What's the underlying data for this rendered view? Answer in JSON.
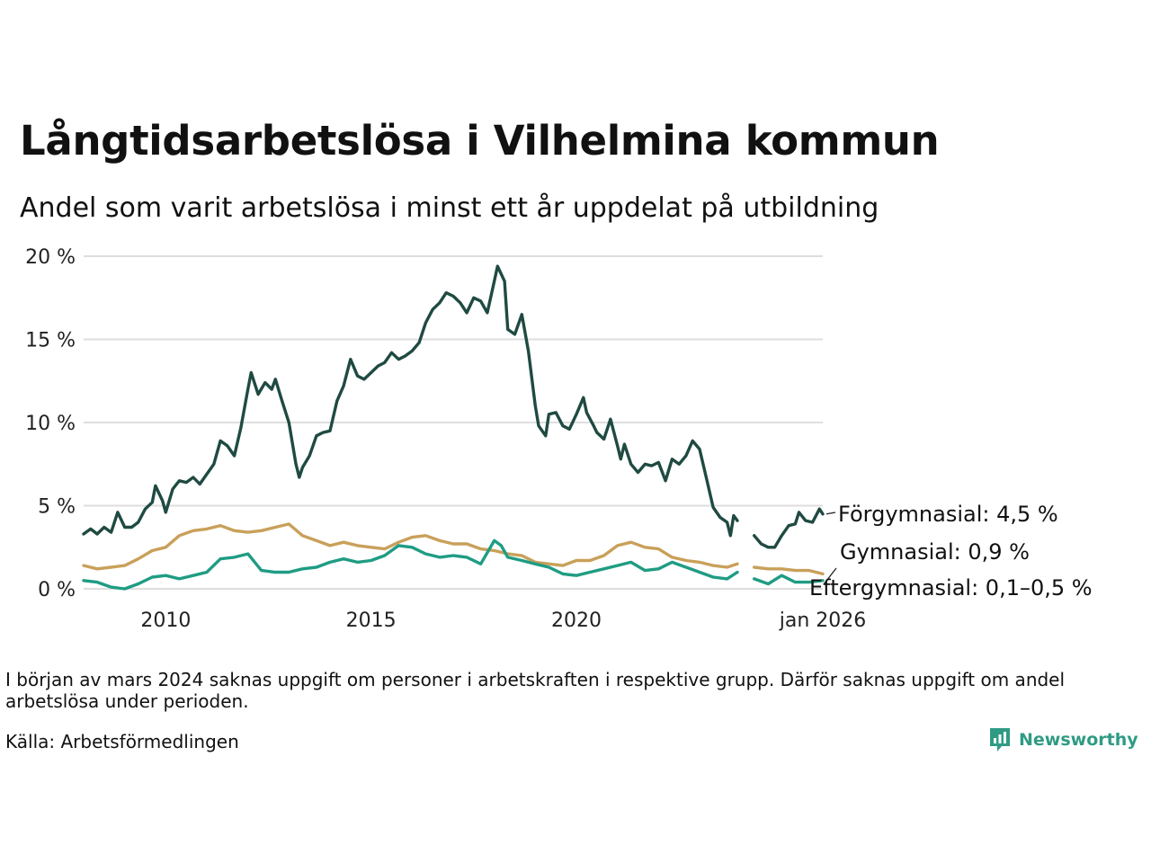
{
  "title": "Långtidsarbetslösa i Vilhelmina kommun",
  "subtitle": "Andel som varit arbetslösa i minst ett år uppdelat på utbildning",
  "note": "I början av mars 2024 saknas uppgift om personer i arbetskraften i respektive grupp. Därför saknas uppgift om andel arbetslösa under perioden.",
  "source": "Källa: Arbetsförmedlingen",
  "brand": "Newsworthy",
  "chart_data": {
    "type": "line",
    "title": "Långtidsarbetslösa i Vilhelmina kommun",
    "ylim": [
      0,
      20
    ],
    "yticks": [
      0,
      5,
      10,
      15,
      20
    ],
    "ytick_labels": [
      "0 %",
      "5 %",
      "10 %",
      "15 %",
      "20 %"
    ],
    "xlim": [
      2008.0,
      2026.0
    ],
    "xticks": [
      2010,
      2015,
      2020,
      2026
    ],
    "xtick_labels": [
      "2010",
      "2015",
      "2020",
      "jan 2026"
    ],
    "gap": [
      2024.0,
      2024.33
    ],
    "series": [
      {
        "name": "Förgymnasial",
        "end_label": "Förgymnasial: 4,5 %",
        "color": "#1f4a42",
        "points": [
          [
            2008.0,
            3.3
          ],
          [
            2008.17,
            3.6
          ],
          [
            2008.33,
            3.3
          ],
          [
            2008.5,
            3.7
          ],
          [
            2008.67,
            3.4
          ],
          [
            2008.83,
            4.6
          ],
          [
            2009.0,
            3.7
          ],
          [
            2009.17,
            3.7
          ],
          [
            2009.33,
            4.0
          ],
          [
            2009.5,
            4.8
          ],
          [
            2009.67,
            5.2
          ],
          [
            2009.75,
            6.2
          ],
          [
            2009.92,
            5.3
          ],
          [
            2010.0,
            4.6
          ],
          [
            2010.17,
            6.0
          ],
          [
            2010.33,
            6.5
          ],
          [
            2010.5,
            6.4
          ],
          [
            2010.67,
            6.7
          ],
          [
            2010.83,
            6.3
          ],
          [
            2011.0,
            6.9
          ],
          [
            2011.17,
            7.5
          ],
          [
            2011.33,
            8.9
          ],
          [
            2011.5,
            8.6
          ],
          [
            2011.67,
            8.0
          ],
          [
            2011.83,
            9.7
          ],
          [
            2012.0,
            12.0
          ],
          [
            2012.08,
            13.0
          ],
          [
            2012.25,
            11.7
          ],
          [
            2012.42,
            12.4
          ],
          [
            2012.58,
            12.0
          ],
          [
            2012.67,
            12.6
          ],
          [
            2012.83,
            11.3
          ],
          [
            2013.0,
            10.0
          ],
          [
            2013.17,
            7.5
          ],
          [
            2013.25,
            6.7
          ],
          [
            2013.33,
            7.3
          ],
          [
            2013.5,
            8.0
          ],
          [
            2013.67,
            9.2
          ],
          [
            2013.83,
            9.4
          ],
          [
            2014.0,
            9.5
          ],
          [
            2014.17,
            11.3
          ],
          [
            2014.33,
            12.2
          ],
          [
            2014.5,
            13.8
          ],
          [
            2014.67,
            12.8
          ],
          [
            2014.83,
            12.6
          ],
          [
            2015.0,
            13.0
          ],
          [
            2015.17,
            13.4
          ],
          [
            2015.33,
            13.6
          ],
          [
            2015.5,
            14.2
          ],
          [
            2015.67,
            13.8
          ],
          [
            2015.83,
            14.0
          ],
          [
            2016.0,
            14.3
          ],
          [
            2016.17,
            14.8
          ],
          [
            2016.33,
            16.0
          ],
          [
            2016.5,
            16.8
          ],
          [
            2016.67,
            17.2
          ],
          [
            2016.83,
            17.8
          ],
          [
            2017.0,
            17.6
          ],
          [
            2017.17,
            17.2
          ],
          [
            2017.33,
            16.6
          ],
          [
            2017.5,
            17.5
          ],
          [
            2017.67,
            17.3
          ],
          [
            2017.83,
            16.6
          ],
          [
            2018.0,
            18.5
          ],
          [
            2018.08,
            19.4
          ],
          [
            2018.25,
            18.5
          ],
          [
            2018.33,
            15.6
          ],
          [
            2018.5,
            15.3
          ],
          [
            2018.67,
            16.5
          ],
          [
            2018.83,
            14.3
          ],
          [
            2019.0,
            11.0
          ],
          [
            2019.08,
            9.8
          ],
          [
            2019.25,
            9.2
          ],
          [
            2019.33,
            10.5
          ],
          [
            2019.5,
            10.6
          ],
          [
            2019.67,
            9.8
          ],
          [
            2019.83,
            9.6
          ],
          [
            2020.0,
            10.5
          ],
          [
            2020.17,
            11.5
          ],
          [
            2020.25,
            10.6
          ],
          [
            2020.42,
            9.8
          ],
          [
            2020.5,
            9.4
          ],
          [
            2020.67,
            9.0
          ],
          [
            2020.83,
            10.2
          ],
          [
            2021.0,
            8.6
          ],
          [
            2021.08,
            7.8
          ],
          [
            2021.17,
            8.7
          ],
          [
            2021.33,
            7.5
          ],
          [
            2021.5,
            7.0
          ],
          [
            2021.67,
            7.5
          ],
          [
            2021.83,
            7.4
          ],
          [
            2022.0,
            7.6
          ],
          [
            2022.17,
            6.5
          ],
          [
            2022.33,
            7.8
          ],
          [
            2022.5,
            7.5
          ],
          [
            2022.67,
            8.0
          ],
          [
            2022.83,
            8.9
          ],
          [
            2023.0,
            8.4
          ],
          [
            2023.17,
            6.6
          ],
          [
            2023.33,
            4.9
          ],
          [
            2023.5,
            4.3
          ],
          [
            2023.67,
            4.0
          ],
          [
            2023.75,
            3.2
          ],
          [
            2023.83,
            4.4
          ],
          [
            2023.92,
            4.1
          ],
          [
            2024.33,
            3.2
          ],
          [
            2024.5,
            2.7
          ],
          [
            2024.67,
            2.5
          ],
          [
            2024.83,
            2.5
          ],
          [
            2025.0,
            3.2
          ],
          [
            2025.17,
            3.8
          ],
          [
            2025.33,
            3.9
          ],
          [
            2025.42,
            4.6
          ],
          [
            2025.58,
            4.1
          ],
          [
            2025.75,
            4.0
          ],
          [
            2025.92,
            4.8
          ],
          [
            2026.0,
            4.5
          ]
        ]
      },
      {
        "name": "Gymnasial",
        "end_label": "Gymnasial: 0,9 %",
        "color": "#c9a05a",
        "points": [
          [
            2008.0,
            1.4
          ],
          [
            2008.33,
            1.2
          ],
          [
            2008.67,
            1.3
          ],
          [
            2009.0,
            1.4
          ],
          [
            2009.33,
            1.8
          ],
          [
            2009.67,
            2.3
          ],
          [
            2010.0,
            2.5
          ],
          [
            2010.33,
            3.2
          ],
          [
            2010.67,
            3.5
          ],
          [
            2011.0,
            3.6
          ],
          [
            2011.33,
            3.8
          ],
          [
            2011.67,
            3.5
          ],
          [
            2012.0,
            3.4
          ],
          [
            2012.33,
            3.5
          ],
          [
            2012.67,
            3.7
          ],
          [
            2013.0,
            3.9
          ],
          [
            2013.33,
            3.2
          ],
          [
            2013.67,
            2.9
          ],
          [
            2014.0,
            2.6
          ],
          [
            2014.33,
            2.8
          ],
          [
            2014.67,
            2.6
          ],
          [
            2015.0,
            2.5
          ],
          [
            2015.33,
            2.4
          ],
          [
            2015.67,
            2.8
          ],
          [
            2016.0,
            3.1
          ],
          [
            2016.33,
            3.2
          ],
          [
            2016.67,
            2.9
          ],
          [
            2017.0,
            2.7
          ],
          [
            2017.33,
            2.7
          ],
          [
            2017.67,
            2.4
          ],
          [
            2018.0,
            2.3
          ],
          [
            2018.33,
            2.1
          ],
          [
            2018.67,
            2.0
          ],
          [
            2019.0,
            1.6
          ],
          [
            2019.33,
            1.5
          ],
          [
            2019.67,
            1.4
          ],
          [
            2020.0,
            1.7
          ],
          [
            2020.33,
            1.7
          ],
          [
            2020.67,
            2.0
          ],
          [
            2021.0,
            2.6
          ],
          [
            2021.33,
            2.8
          ],
          [
            2021.67,
            2.5
          ],
          [
            2022.0,
            2.4
          ],
          [
            2022.33,
            1.9
          ],
          [
            2022.67,
            1.7
          ],
          [
            2023.0,
            1.6
          ],
          [
            2023.33,
            1.4
          ],
          [
            2023.67,
            1.3
          ],
          [
            2023.92,
            1.5
          ],
          [
            2024.33,
            1.3
          ],
          [
            2024.67,
            1.2
          ],
          [
            2025.0,
            1.2
          ],
          [
            2025.33,
            1.1
          ],
          [
            2025.67,
            1.1
          ],
          [
            2026.0,
            0.9
          ]
        ]
      },
      {
        "name": "Eftergymnasial",
        "end_label": "Eftergymnasial: 0,1–0,5 %",
        "color": "#1f9c84",
        "points": [
          [
            2008.0,
            0.5
          ],
          [
            2008.33,
            0.4
          ],
          [
            2008.67,
            0.1
          ],
          [
            2009.0,
            0.0
          ],
          [
            2009.33,
            0.3
          ],
          [
            2009.67,
            0.7
          ],
          [
            2010.0,
            0.8
          ],
          [
            2010.33,
            0.6
          ],
          [
            2010.67,
            0.8
          ],
          [
            2011.0,
            1.0
          ],
          [
            2011.33,
            1.8
          ],
          [
            2011.67,
            1.9
          ],
          [
            2012.0,
            2.1
          ],
          [
            2012.33,
            1.1
          ],
          [
            2012.67,
            1.0
          ],
          [
            2013.0,
            1.0
          ],
          [
            2013.33,
            1.2
          ],
          [
            2013.67,
            1.3
          ],
          [
            2014.0,
            1.6
          ],
          [
            2014.33,
            1.8
          ],
          [
            2014.67,
            1.6
          ],
          [
            2015.0,
            1.7
          ],
          [
            2015.33,
            2.0
          ],
          [
            2015.67,
            2.6
          ],
          [
            2016.0,
            2.5
          ],
          [
            2016.33,
            2.1
          ],
          [
            2016.67,
            1.9
          ],
          [
            2017.0,
            2.0
          ],
          [
            2017.33,
            1.9
          ],
          [
            2017.67,
            1.5
          ],
          [
            2018.0,
            2.9
          ],
          [
            2018.17,
            2.6
          ],
          [
            2018.33,
            1.9
          ],
          [
            2018.67,
            1.7
          ],
          [
            2019.0,
            1.5
          ],
          [
            2019.33,
            1.3
          ],
          [
            2019.67,
            0.9
          ],
          [
            2020.0,
            0.8
          ],
          [
            2020.33,
            1.0
          ],
          [
            2020.67,
            1.2
          ],
          [
            2021.0,
            1.4
          ],
          [
            2021.33,
            1.6
          ],
          [
            2021.67,
            1.1
          ],
          [
            2022.0,
            1.2
          ],
          [
            2022.33,
            1.6
          ],
          [
            2022.67,
            1.3
          ],
          [
            2023.0,
            1.0
          ],
          [
            2023.33,
            0.7
          ],
          [
            2023.67,
            0.6
          ],
          [
            2023.92,
            1.0
          ],
          [
            2024.33,
            0.6
          ],
          [
            2024.67,
            0.3
          ],
          [
            2025.0,
            0.8
          ],
          [
            2025.33,
            0.4
          ],
          [
            2025.67,
            0.4
          ],
          [
            2026.0,
            0.5
          ]
        ]
      }
    ]
  }
}
